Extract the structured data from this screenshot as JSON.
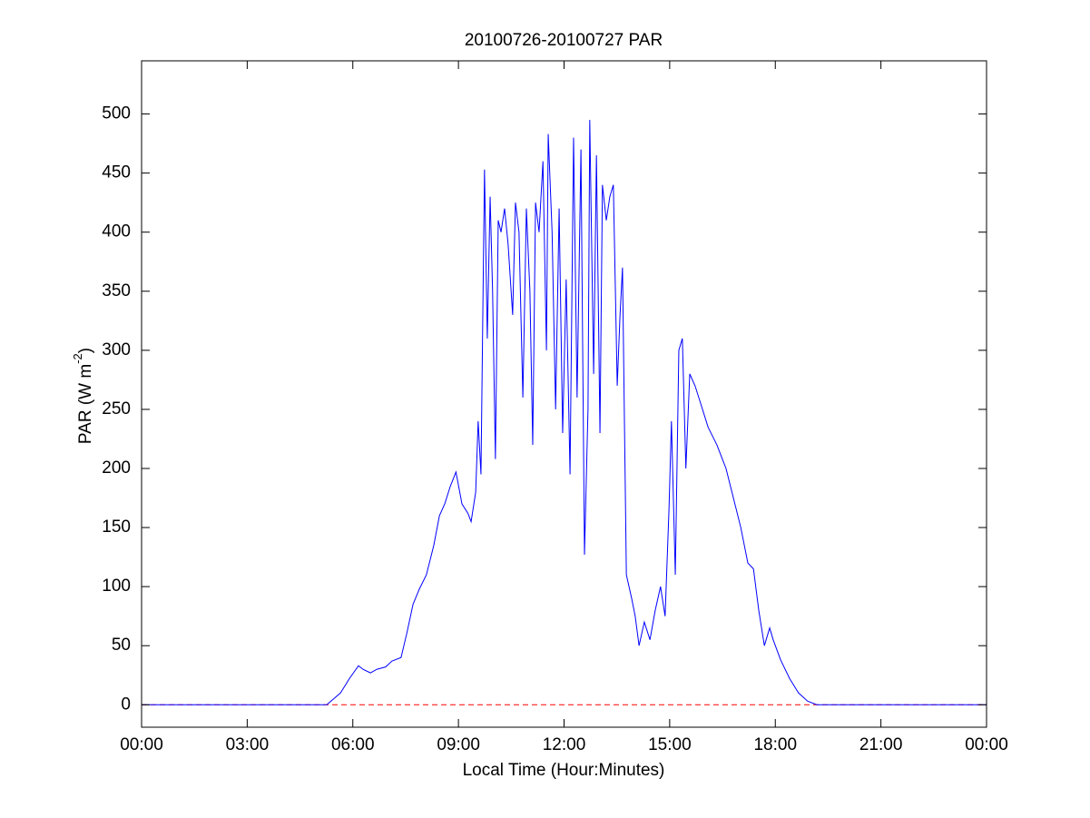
{
  "chart_data": {
    "type": "line",
    "title": "20100726-20100727 PAR",
    "x_label": "Local Time (Hour:Minutes)",
    "y_label_parts": [
      "PAR (W m",
      "-2",
      ")"
    ],
    "x": [
      0,
      2,
      4,
      5,
      5.26,
      5.65,
      5.9,
      6.16,
      6.29,
      6.5,
      6.68,
      6.93,
      7.11,
      7.37,
      7.53,
      7.71,
      7.89,
      8.09,
      8.3,
      8.46,
      8.61,
      8.77,
      8.93,
      9.1,
      9.27,
      9.36,
      9.49,
      9.56,
      9.64,
      9.74,
      9.82,
      9.9,
      9.97,
      10.05,
      10.13,
      10.21,
      10.31,
      10.41,
      10.54,
      10.62,
      10.72,
      10.83,
      10.93,
      11.03,
      11.11,
      11.19,
      11.29,
      11.4,
      11.5,
      11.55,
      11.66,
      11.76,
      11.86,
      11.96,
      12.06,
      12.17,
      12.27,
      12.37,
      12.48,
      12.58,
      12.68,
      12.73,
      12.84,
      12.92,
      13.02,
      13.09,
      13.2,
      13.3,
      13.4,
      13.51,
      13.59,
      13.66,
      13.77,
      13.92,
      14.02,
      14.13,
      14.28,
      14.44,
      14.59,
      14.74,
      14.87,
      14.98,
      15.05,
      15.16,
      15.26,
      15.36,
      15.46,
      15.57,
      15.72,
      15.88,
      16.09,
      16.34,
      16.6,
      16.81,
      17.02,
      17.22,
      17.38,
      17.53,
      17.69,
      17.84,
      17.94,
      18.15,
      18.41,
      18.66,
      18.92,
      19.18,
      20,
      22,
      24
    ],
    "series": [
      {
        "name": "PAR",
        "color": "#0000ff",
        "values": [
          0,
          0,
          0,
          0,
          0,
          10,
          22,
          33,
          30,
          27,
          30,
          32,
          37,
          40,
          60,
          85,
          98,
          110,
          135,
          160,
          170,
          185,
          197,
          170,
          162,
          155,
          180,
          240,
          195,
          453,
          310,
          430,
          350,
          208,
          410,
          400,
          420,
          390,
          330,
          425,
          400,
          260,
          420,
          350,
          220,
          425,
          400,
          460,
          300,
          483,
          400,
          250,
          420,
          230,
          360,
          195,
          480,
          260,
          470,
          127,
          250,
          495,
          280,
          465,
          230,
          440,
          410,
          430,
          440,
          270,
          330,
          370,
          110,
          90,
          75,
          50,
          70,
          55,
          80,
          100,
          75,
          165,
          240,
          110,
          300,
          310,
          200,
          280,
          270,
          255,
          235,
          220,
          200,
          175,
          150,
          120,
          115,
          80,
          50,
          65,
          55,
          38,
          22,
          10,
          3,
          0,
          0,
          0,
          0
        ]
      }
    ],
    "reference_line": {
      "value": 0,
      "color": "#ff0000",
      "style": "dashed"
    },
    "xlim": [
      0,
      24
    ],
    "xticks": [
      {
        "value": 0,
        "label": "00:00"
      },
      {
        "value": 3,
        "label": "03:00"
      },
      {
        "value": 6,
        "label": "06:00"
      },
      {
        "value": 9,
        "label": "09:00"
      },
      {
        "value": 12,
        "label": "12:00"
      },
      {
        "value": 15,
        "label": "15:00"
      },
      {
        "value": 18,
        "label": "18:00"
      },
      {
        "value": 21,
        "label": "21:00"
      },
      {
        "value": 24,
        "label": "00:00"
      }
    ],
    "ylim": [
      -19,
      545
    ],
    "yticks": [
      0,
      50,
      100,
      150,
      200,
      250,
      300,
      350,
      400,
      450,
      500
    ],
    "grid": false
  }
}
